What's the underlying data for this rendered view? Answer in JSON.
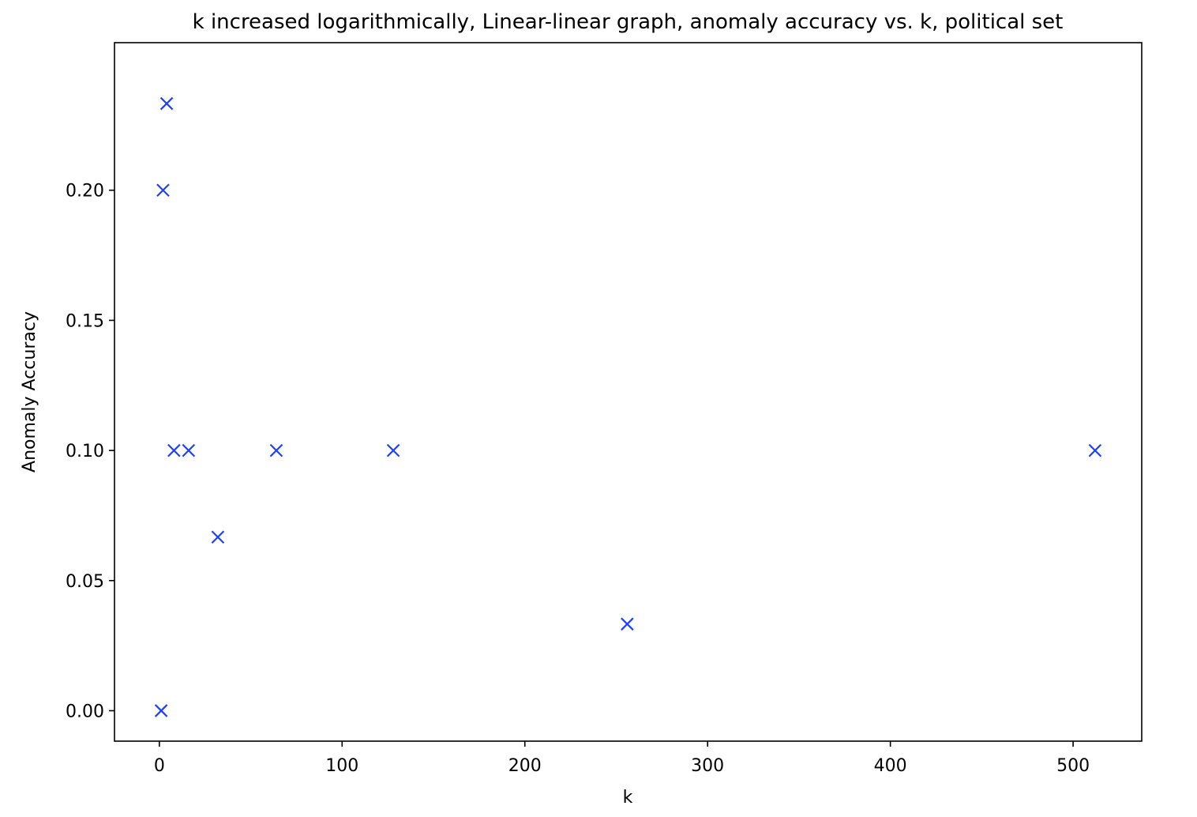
{
  "chart_data": {
    "type": "scatter",
    "title": "k increased logarithmically, Linear-linear graph, anomaly accuracy vs. k, political set",
    "xlabel": "k",
    "ylabel": "Anomaly Accuracy",
    "xlim": [
      -24.55,
      537.55
    ],
    "ylim": [
      -0.0117,
      0.2567
    ],
    "xticks": [
      0,
      100,
      200,
      300,
      400,
      500
    ],
    "xtick_labels": [
      "0",
      "100",
      "200",
      "300",
      "400",
      "500"
    ],
    "yticks": [
      0.0,
      0.05,
      0.1,
      0.15,
      0.2
    ],
    "ytick_labels": [
      "0.00",
      "0.05",
      "0.10",
      "0.15",
      "0.20"
    ],
    "grid": false,
    "legend": "none",
    "marker": "x",
    "color": "#1f3fff",
    "series": [
      {
        "x": [
          1,
          2,
          4,
          8,
          16,
          32,
          64,
          128,
          256,
          512
        ],
        "y": [
          0.0,
          0.2,
          0.2333,
          0.1,
          0.1,
          0.0667,
          0.1,
          0.1,
          0.0333,
          0.1
        ]
      }
    ]
  }
}
